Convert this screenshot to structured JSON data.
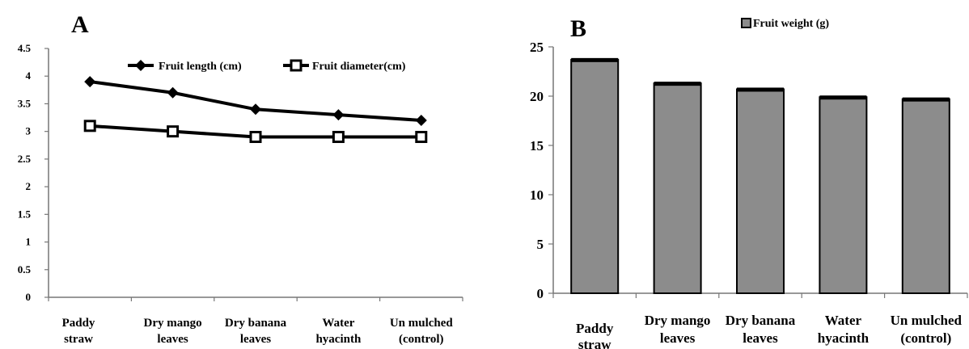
{
  "chart_data": [
    {
      "panel": "A",
      "type": "line",
      "categories": [
        [
          "Paddy",
          "straw"
        ],
        [
          "Dry mango",
          "leaves"
        ],
        [
          "Dry banana",
          "leaves"
        ],
        [
          "Water",
          "hyacinth"
        ],
        [
          "Un mulched",
          "(control)"
        ]
      ],
      "series": [
        {
          "name": "Fruit length (cm)",
          "values": [
            3.9,
            3.7,
            3.4,
            3.3,
            3.2
          ],
          "marker": "diamond"
        },
        {
          "name": "Fruit diameter(cm)",
          "values": [
            3.1,
            3.0,
            2.9,
            2.9,
            2.9
          ],
          "marker": "square"
        }
      ],
      "ylim": [
        0,
        4.5
      ],
      "yticks": [
        "0",
        "0.5",
        "1",
        "1.5",
        "2",
        "2.5",
        "3",
        "3.5",
        "4",
        "4.5"
      ],
      "legend_position": "top-right",
      "grid": false
    },
    {
      "panel": "B",
      "type": "bar",
      "categories": [
        [
          "Paddy",
          "straw"
        ],
        [
          "Dry mango",
          "leaves"
        ],
        [
          "Dry banana",
          "leaves"
        ],
        [
          "Water",
          "hyacinth"
        ],
        [
          "Un mulched",
          "(control)"
        ]
      ],
      "series": [
        {
          "name": "Fruit weight (g)",
          "values": [
            23.7,
            21.3,
            20.7,
            19.9,
            19.7
          ]
        }
      ],
      "ylim": [
        0,
        25
      ],
      "yticks": [
        "0",
        "5",
        "10",
        "15",
        "20",
        "25"
      ],
      "bar_color": "#8c8c8c",
      "legend_position": "top",
      "grid": false
    }
  ]
}
